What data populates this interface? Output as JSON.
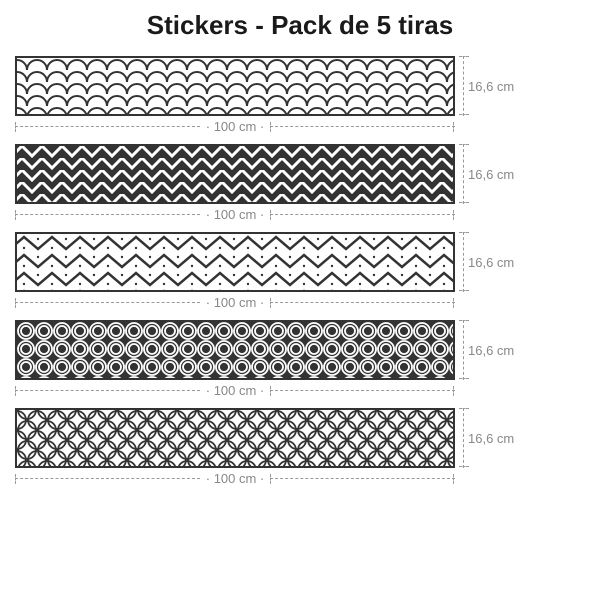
{
  "title": "Stickers - Pack de 5 tiras",
  "width_label": "100 cm",
  "height_label": "16,6 cm",
  "strips": [
    {
      "pattern": "scales",
      "bg": "#ffffff",
      "fg": "#333333"
    },
    {
      "pattern": "chevron_dark",
      "bg": "#333333",
      "fg": "#ffffff"
    },
    {
      "pattern": "chevron_dots",
      "bg": "#ffffff",
      "fg": "#333333"
    },
    {
      "pattern": "circles_dark",
      "bg": "#333333",
      "fg": "#ffffff"
    },
    {
      "pattern": "quatrefoil",
      "bg": "#ffffff",
      "fg": "#333333"
    }
  ],
  "colors": {
    "border": "#333333",
    "dim_line": "#999999",
    "dim_text": "#888888"
  }
}
